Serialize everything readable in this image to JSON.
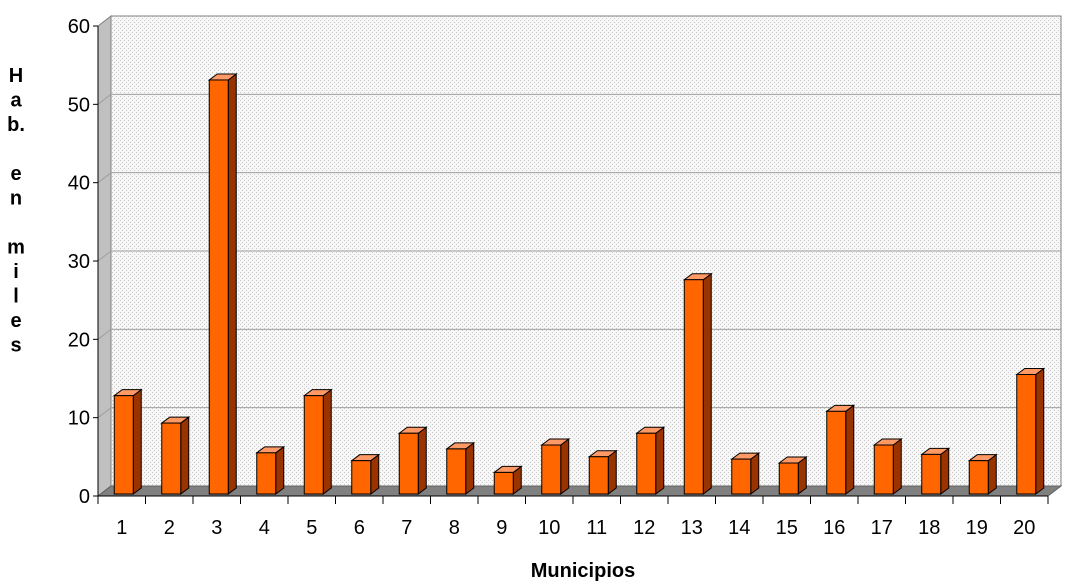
{
  "chart_data": {
    "type": "bar",
    "title": "",
    "xlabel": "Municipios",
    "ylabel": "Hab. en miles",
    "ylabel_lines": [
      "H",
      "a",
      "b.",
      "",
      "e",
      "n",
      "",
      "m",
      "i",
      "l",
      "e",
      "s"
    ],
    "ylim": [
      0,
      60
    ],
    "yticks": [
      0,
      10,
      20,
      30,
      40,
      50,
      60
    ],
    "categories": [
      "1",
      "2",
      "3",
      "4",
      "5",
      "6",
      "7",
      "8",
      "9",
      "10",
      "11",
      "12",
      "13",
      "14",
      "15",
      "16",
      "17",
      "18",
      "19",
      "20"
    ],
    "values": [
      12.3,
      8.8,
      52.6,
      5.0,
      12.3,
      4.0,
      7.5,
      5.5,
      2.5,
      6.0,
      4.5,
      7.5,
      27.1,
      4.2,
      3.7,
      10.3,
      6.0,
      4.8,
      4.0,
      15.0
    ],
    "grid": true,
    "legend": "none",
    "bar_color": "#ff6600",
    "bar_side_color": "#993300",
    "bar_top_color": "#ff9966",
    "wall_color": "#f2f2f2",
    "floor_color": "#808080",
    "side_wall_color": "#c0c0c0"
  }
}
